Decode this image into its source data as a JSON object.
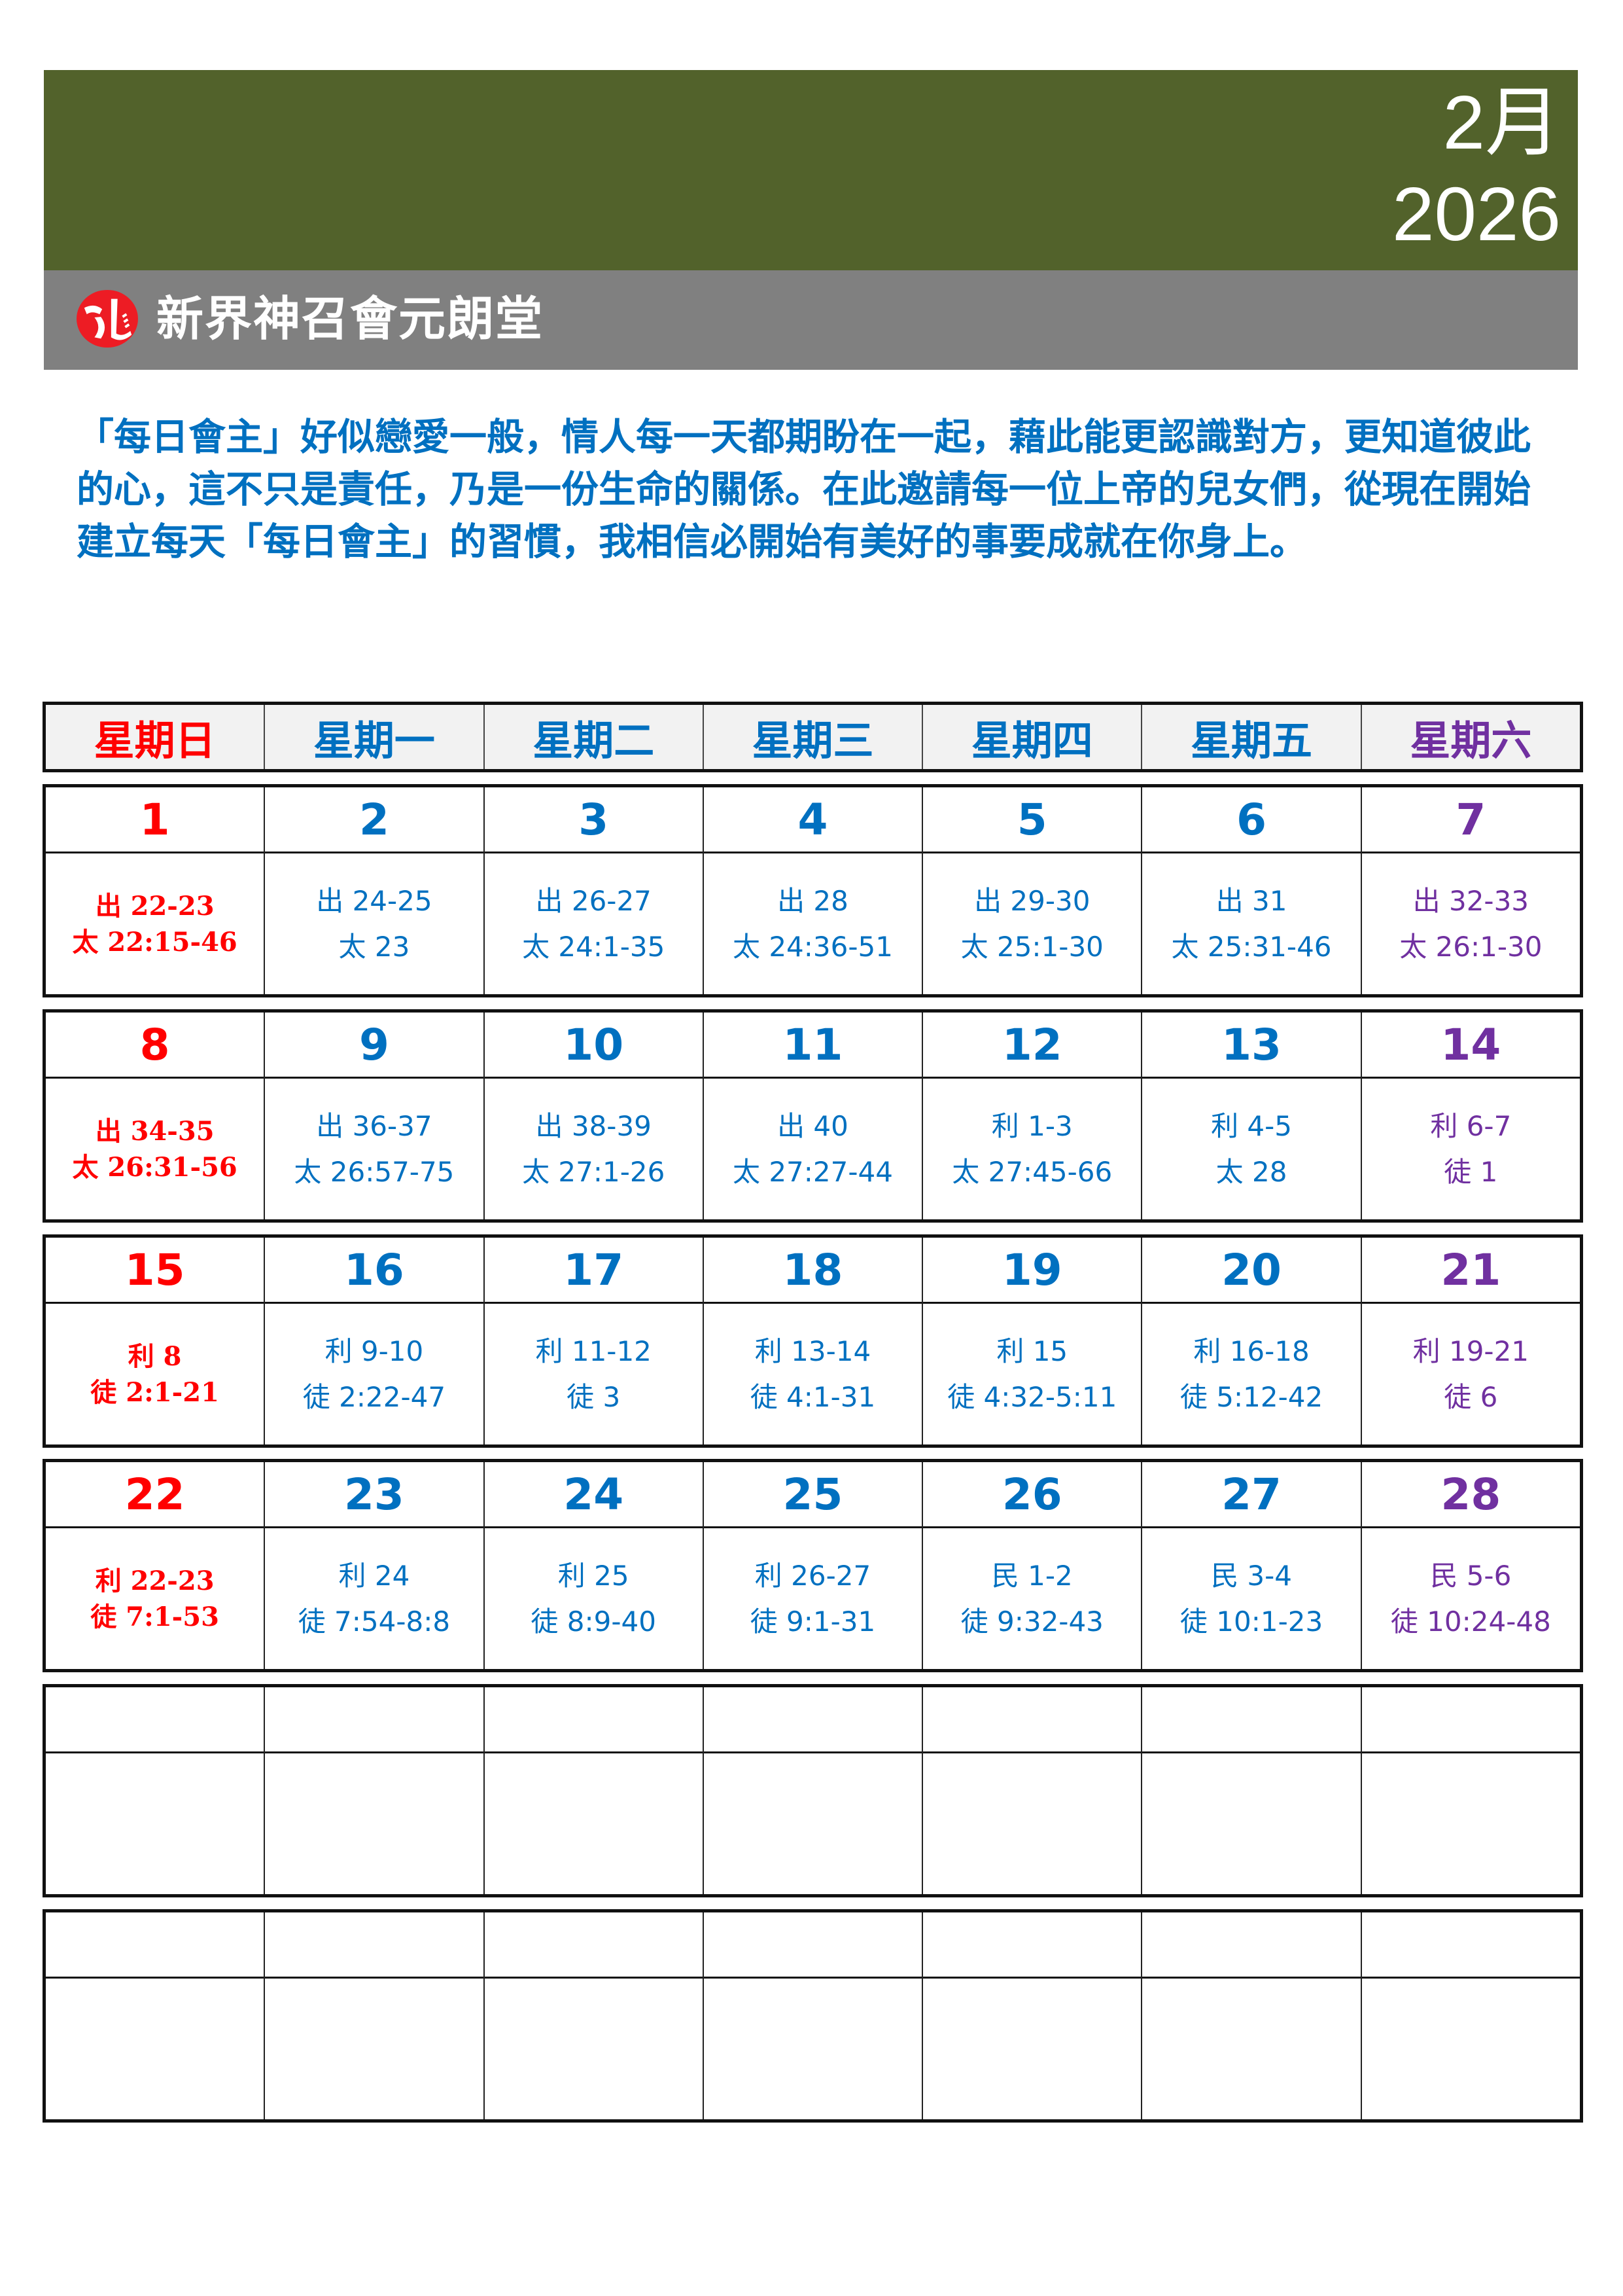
{
  "header": {
    "month": "2月",
    "year": "2026",
    "church_name": "新界神召會元朗堂",
    "bg_color": "#52622b",
    "band_color": "#808080"
  },
  "intro": "「每日會主」好似戀愛一般，情人每一天都期盼在一起，藉此能更認識對方，更知道彼此的心，這不只是責任，乃是一份生命的關係。在此邀請每一位上帝的兒女們，從現在開始建立每天「每日會主」的習慣，我相信必開始有美好的事要成就在你身上。",
  "colors": {
    "sunday": "#ff0000",
    "weekday": "#0070c0",
    "saturday": "#7030a0"
  },
  "weekdays": [
    "星期日",
    "星期一",
    "星期二",
    "星期三",
    "星期四",
    "星期五",
    "星期六"
  ],
  "weeks": [
    [
      {
        "date": "1",
        "lines": [
          "出 22-23",
          "太 22:15-46"
        ]
      },
      {
        "date": "2",
        "lines": [
          "出 24-25",
          "太 23"
        ]
      },
      {
        "date": "3",
        "lines": [
          "出 26-27",
          "太 24:1-35"
        ]
      },
      {
        "date": "4",
        "lines": [
          "出 28",
          "太 24:36-51"
        ]
      },
      {
        "date": "5",
        "lines": [
          "出 29-30",
          "太 25:1-30"
        ]
      },
      {
        "date": "6",
        "lines": [
          "出 31",
          "太 25:31-46"
        ]
      },
      {
        "date": "7",
        "lines": [
          "出 32-33",
          "太 26:1-30"
        ]
      }
    ],
    [
      {
        "date": "8",
        "lines": [
          "出 34-35",
          "太 26:31-56"
        ]
      },
      {
        "date": "9",
        "lines": [
          "出 36-37",
          "太 26:57-75"
        ]
      },
      {
        "date": "10",
        "lines": [
          "出 38-39",
          "太 27:1-26"
        ]
      },
      {
        "date": "11",
        "lines": [
          "出 40",
          "太 27:27-44"
        ]
      },
      {
        "date": "12",
        "lines": [
          "利 1-3",
          "太 27:45-66"
        ]
      },
      {
        "date": "13",
        "lines": [
          "利 4-5",
          "太 28"
        ]
      },
      {
        "date": "14",
        "lines": [
          "利 6-7",
          "徒 1"
        ]
      }
    ],
    [
      {
        "date": "15",
        "lines": [
          "利 8",
          "徒 2:1-21"
        ]
      },
      {
        "date": "16",
        "lines": [
          "利 9-10",
          "徒 2:22-47"
        ]
      },
      {
        "date": "17",
        "lines": [
          "利 11-12",
          "徒 3"
        ]
      },
      {
        "date": "18",
        "lines": [
          "利 13-14",
          "徒 4:1-31"
        ]
      },
      {
        "date": "19",
        "lines": [
          "利 15",
          "徒 4:32-5:11"
        ]
      },
      {
        "date": "20",
        "lines": [
          "利 16-18",
          "徒 5:12-42"
        ]
      },
      {
        "date": "21",
        "lines": [
          "利 19-21",
          "徒 6"
        ]
      }
    ],
    [
      {
        "date": "22",
        "lines": [
          "利 22-23",
          "徒 7:1-53"
        ]
      },
      {
        "date": "23",
        "lines": [
          "利 24",
          "徒 7:54-8:8"
        ]
      },
      {
        "date": "24",
        "lines": [
          "利 25",
          "徒 8:9-40"
        ]
      },
      {
        "date": "25",
        "lines": [
          "利 26-27",
          "徒 9:1-31"
        ]
      },
      {
        "date": "26",
        "lines": [
          "民 1-2",
          "徒 9:32-43"
        ]
      },
      {
        "date": "27",
        "lines": [
          "民 3-4",
          "徒 10:1-23"
        ]
      },
      {
        "date": "28",
        "lines": [
          "民 5-6",
          "徒 10:24-48"
        ]
      }
    ],
    [
      {
        "date": "",
        "lines": []
      },
      {
        "date": "",
        "lines": []
      },
      {
        "date": "",
        "lines": []
      },
      {
        "date": "",
        "lines": []
      },
      {
        "date": "",
        "lines": []
      },
      {
        "date": "",
        "lines": []
      },
      {
        "date": "",
        "lines": []
      }
    ],
    [
      {
        "date": "",
        "lines": []
      },
      {
        "date": "",
        "lines": []
      },
      {
        "date": "",
        "lines": []
      },
      {
        "date": "",
        "lines": []
      },
      {
        "date": "",
        "lines": []
      },
      {
        "date": "",
        "lines": []
      },
      {
        "date": "",
        "lines": []
      }
    ]
  ]
}
